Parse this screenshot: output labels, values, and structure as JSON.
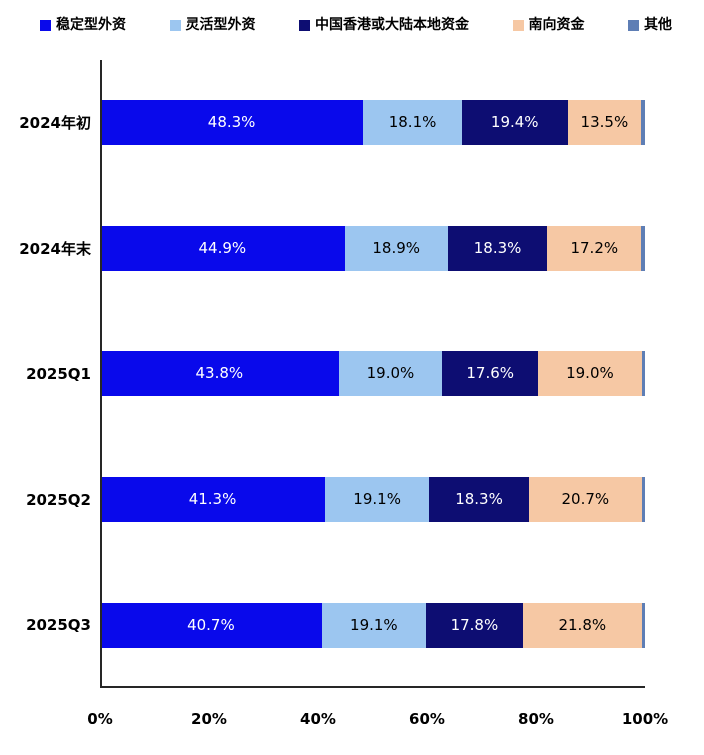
{
  "chart_data": {
    "type": "bar",
    "orientation": "horizontal",
    "stacked": true,
    "grid": false,
    "legend_position": "top",
    "categories": [
      "2024年初",
      "2024年末",
      "2025Q1",
      "2025Q2",
      "2025Q3"
    ],
    "series": [
      {
        "name": "稳定型外资",
        "color": "#0909EB",
        "label_color": "#ffffff",
        "show_labels": true,
        "values": [
          48.3,
          44.9,
          43.8,
          41.3,
          40.7
        ]
      },
      {
        "name": "灵活型外资",
        "color": "#9CC6F0",
        "label_color": "#000000",
        "show_labels": true,
        "values": [
          18.1,
          18.9,
          19.0,
          19.1,
          19.1
        ]
      },
      {
        "name": "中国香港或大陆本地资金",
        "color": "#0D0D72",
        "label_color": "#ffffff",
        "show_labels": true,
        "values": [
          19.4,
          18.3,
          17.6,
          18.3,
          17.8
        ]
      },
      {
        "name": "南向资金",
        "color": "#F6C8A4",
        "label_color": "#000000",
        "show_labels": true,
        "values": [
          13.5,
          17.2,
          19.0,
          20.7,
          21.8
        ]
      },
      {
        "name": "其他",
        "color": "#5E7EB5",
        "label_color": "#000000",
        "show_labels": false,
        "values": [
          0.7,
          0.7,
          0.6,
          0.6,
          0.6
        ]
      }
    ],
    "x_ticks": [
      "0%",
      "20%",
      "40%",
      "60%",
      "80%",
      "100%"
    ],
    "xlim": [
      0,
      100
    ],
    "axis_color": "#262626"
  }
}
